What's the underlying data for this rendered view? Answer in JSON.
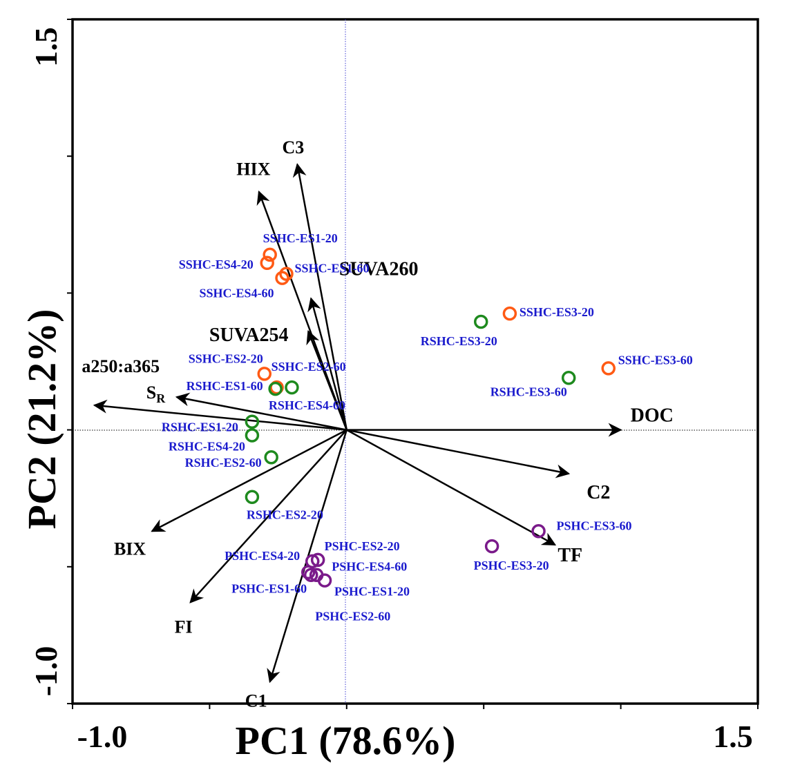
{
  "chart_data": {
    "type": "scatter",
    "subtype": "pca-biplot",
    "xlabel": "PC1 (78.6%)",
    "ylabel": "PC2 (21.2%)",
    "xlim": [
      -1.0,
      1.5
    ],
    "ylim": [
      -1.0,
      1.5
    ],
    "x_tick_labels": [
      "-1.0",
      "1.5"
    ],
    "y_tick_labels": [
      "-1.0",
      "1.5"
    ],
    "zero_lines": true,
    "colors": {
      "arrow": "#000000",
      "point_label": "#1a1acd",
      "SSHC": "#ff5a14",
      "RSHC": "#1e8a1e",
      "PSHC": "#7a1a8a",
      "zero_line_x": "#000000",
      "zero_line_y": "#3c3cd2"
    },
    "loadings": [
      {
        "name": "C3",
        "x": -0.18,
        "y": 0.97
      },
      {
        "name": "HIX",
        "x": -0.32,
        "y": 0.87
      },
      {
        "name": "SUVA260",
        "x": -0.13,
        "y": 0.48
      },
      {
        "name": "SUVA254",
        "x": -0.14,
        "y": 0.36
      },
      {
        "name": "a250:a365",
        "x": -0.92,
        "y": 0.09
      },
      {
        "name": "SR",
        "x": -0.62,
        "y": 0.12
      },
      {
        "name": "DOC",
        "x": 1.0,
        "y": 0.0
      },
      {
        "name": "C2",
        "x": 0.81,
        "y": -0.16
      },
      {
        "name": "TF",
        "x": 0.76,
        "y": -0.42
      },
      {
        "name": "BIX",
        "x": -0.71,
        "y": -0.37
      },
      {
        "name": "FI",
        "x": -0.57,
        "y": -0.63
      },
      {
        "name": "C1",
        "x": -0.28,
        "y": -0.92
      }
    ],
    "series": [
      {
        "name": "SSHC",
        "points": [
          {
            "label": "SSHC-ES1-20",
            "x": -0.28,
            "y": 0.64
          },
          {
            "label": "SSHC-ES4-20",
            "x": -0.29,
            "y": 0.61
          },
          {
            "label": "SSHC-ES1-60",
            "x": -0.22,
            "y": 0.57
          },
          {
            "label": "SSHC-ES4-60",
            "x": -0.235,
            "y": 0.555
          },
          {
            "label": "SSHC-ES3-20",
            "x": 0.595,
            "y": 0.425
          },
          {
            "label": "SSHC-ES3-60",
            "x": 0.955,
            "y": 0.225
          },
          {
            "label": "SSHC-ES2-20",
            "x": -0.3,
            "y": 0.205
          },
          {
            "label": "SSHC-ES2-60",
            "x": -0.255,
            "y": 0.155
          }
        ]
      },
      {
        "name": "RSHC",
        "points": [
          {
            "label": "RSHC-ES3-20",
            "x": 0.49,
            "y": 0.395
          },
          {
            "label": "RSHC-ES3-60",
            "x": 0.81,
            "y": 0.19
          },
          {
            "label": "RSHC-ES1-60",
            "x": -0.26,
            "y": 0.15
          },
          {
            "label": "RSHC-ES4-60",
            "x": -0.2,
            "y": 0.155
          },
          {
            "label": "RSHC-ES1-20",
            "x": -0.345,
            "y": 0.03
          },
          {
            "label": "RSHC-ES4-20",
            "x": -0.345,
            "y": -0.02
          },
          {
            "label": "RSHC-ES2-60",
            "x": -0.275,
            "y": -0.1
          },
          {
            "label": "RSHC-ES2-20",
            "x": -0.345,
            "y": -0.245
          }
        ]
      },
      {
        "name": "PSHC",
        "points": [
          {
            "label": "PSHC-ES3-60",
            "x": 0.7,
            "y": -0.37
          },
          {
            "label": "PSHC-ES3-20",
            "x": 0.53,
            "y": -0.425
          },
          {
            "label": "PSHC-ES2-20",
            "x": -0.105,
            "y": -0.475
          },
          {
            "label": "PSHC-ES4-20",
            "x": -0.125,
            "y": -0.48
          },
          {
            "label": "PSHC-ES4-60",
            "x": -0.14,
            "y": -0.52
          },
          {
            "label": "PSHC-ES1-60",
            "x": -0.11,
            "y": -0.53
          },
          {
            "label": "PSHC-ES1-20",
            "x": -0.08,
            "y": -0.55
          },
          {
            "label": "PSHC-ES2-60",
            "x": -0.13,
            "y": -0.53
          }
        ]
      }
    ]
  }
}
